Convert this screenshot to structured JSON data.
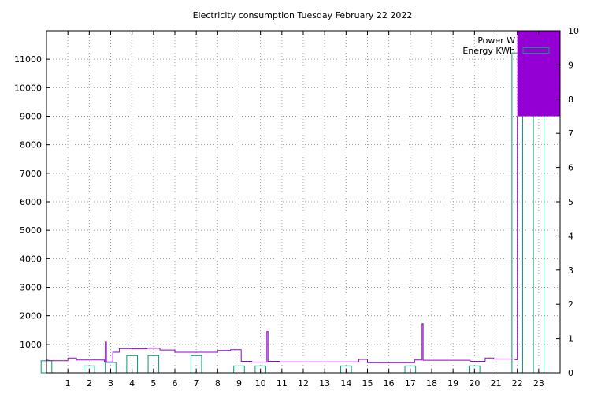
{
  "chart_data": {
    "type": "line",
    "title": "Electricity consumption Tuesday February 22 2022",
    "xlim": [
      0,
      24
    ],
    "ylim": [
      0,
      12000
    ],
    "y2lim": [
      0,
      10
    ],
    "grid": true,
    "legend_placement": "top-right",
    "x_ticks": [
      "1",
      "2",
      "3",
      "4",
      "5",
      "6",
      "7",
      "8",
      "9",
      "10",
      "11",
      "12",
      "13",
      "14",
      "15",
      "16",
      "17",
      "18",
      "19",
      "20",
      "21",
      "22",
      "23"
    ],
    "y_ticks": [
      "1000",
      "2000",
      "3000",
      "4000",
      "5000",
      "6000",
      "7000",
      "8000",
      "9000",
      "10000",
      "11000"
    ],
    "y2_ticks": [
      "0",
      "1",
      "2",
      "3",
      "4",
      "5",
      "6",
      "7",
      "8",
      "9",
      "10"
    ],
    "colors": {
      "power": "#9400d3",
      "energy": "#009e73"
    },
    "series": [
      {
        "name": "Power W",
        "axis": "y",
        "style": "step",
        "points": [
          [
            0,
            450
          ],
          [
            0.2,
            420
          ],
          [
            1,
            420
          ],
          [
            1,
            520
          ],
          [
            1.4,
            520
          ],
          [
            1.4,
            450
          ],
          [
            2.7,
            450
          ],
          [
            2.7,
            380
          ],
          [
            2.75,
            380
          ],
          [
            2.75,
            1080
          ],
          [
            2.8,
            1080
          ],
          [
            2.8,
            380
          ],
          [
            3.1,
            380
          ],
          [
            3.1,
            720
          ],
          [
            3.4,
            720
          ],
          [
            3.4,
            850
          ],
          [
            4,
            850
          ],
          [
            4,
            840
          ],
          [
            4.7,
            840
          ],
          [
            4.7,
            860
          ],
          [
            5.3,
            860
          ],
          [
            5.3,
            800
          ],
          [
            6,
            800
          ],
          [
            6,
            720
          ],
          [
            8,
            720
          ],
          [
            8,
            780
          ],
          [
            8.6,
            780
          ],
          [
            8.6,
            810
          ],
          [
            9.1,
            810
          ],
          [
            9.1,
            400
          ],
          [
            9.6,
            400
          ],
          [
            9.6,
            370
          ],
          [
            10.3,
            370
          ],
          [
            10.3,
            1450
          ],
          [
            10.35,
            1450
          ],
          [
            10.35,
            400
          ],
          [
            10.9,
            400
          ],
          [
            10.9,
            380
          ],
          [
            14.6,
            380
          ],
          [
            14.6,
            360
          ],
          [
            14.6,
            470
          ],
          [
            15,
            470
          ],
          [
            15,
            350
          ],
          [
            17.2,
            350
          ],
          [
            17.2,
            450
          ],
          [
            17.55,
            450
          ],
          [
            17.55,
            1720
          ],
          [
            17.6,
            1720
          ],
          [
            17.6,
            440
          ],
          [
            19.8,
            440
          ],
          [
            19.8,
            400
          ],
          [
            20.5,
            400
          ],
          [
            20.5,
            520
          ],
          [
            20.9,
            520
          ],
          [
            20.9,
            480
          ],
          [
            21.9,
            480
          ],
          [
            21.9,
            460
          ],
          [
            22,
            460
          ],
          [
            22,
            9000
          ]
        ]
      },
      {
        "name": "Energy KWh",
        "axis": "y2",
        "style": "boxes",
        "bars": [
          [
            0,
            0.35
          ],
          [
            2,
            0.2
          ],
          [
            3,
            0.3
          ],
          [
            4,
            0.5
          ],
          [
            5,
            0.5
          ],
          [
            7,
            0.5
          ],
          [
            9,
            0.2
          ],
          [
            10,
            0.2
          ],
          [
            14,
            0.2
          ],
          [
            17,
            0.2
          ],
          [
            20,
            0.2
          ],
          [
            22,
            9.35
          ],
          [
            23,
            9.6
          ]
        ]
      }
    ]
  }
}
